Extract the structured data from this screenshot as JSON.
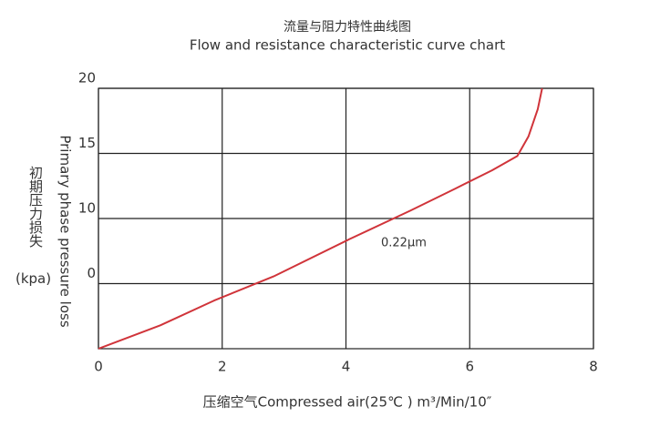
{
  "chart_data": {
    "type": "line",
    "title": "流量与阻力特性曲线图",
    "subtitle": "Flow and resistance characteristic curve chart",
    "x_label": "压缩空气Compressed air(25℃ ) m³/Min/10″",
    "y_label_cn": "初期压力损失",
    "y_label_unit": "(kpa)",
    "y_label_en": "Primary phase pressure loss",
    "annotation": "0.22μm",
    "xlim": [
      0,
      8
    ],
    "xticks": [
      0,
      2,
      4,
      6,
      8
    ],
    "ylim": [
      -5,
      20
    ],
    "yticks": [
      0,
      10,
      15,
      20
    ],
    "grid": true,
    "series": [
      {
        "name": "0.22μm",
        "color": "#d0343a",
        "x": [
          0,
          1,
          1.87,
          2.83,
          4.05,
          5.04,
          5.77,
          6.36,
          6.77,
          6.95,
          7.1,
          7.17
        ],
        "values": [
          -5,
          -3.2,
          -1.3,
          1.1,
          6.8,
          10.6,
          12.3,
          13.7,
          14.8,
          16.3,
          18.4,
          20
        ]
      }
    ]
  }
}
